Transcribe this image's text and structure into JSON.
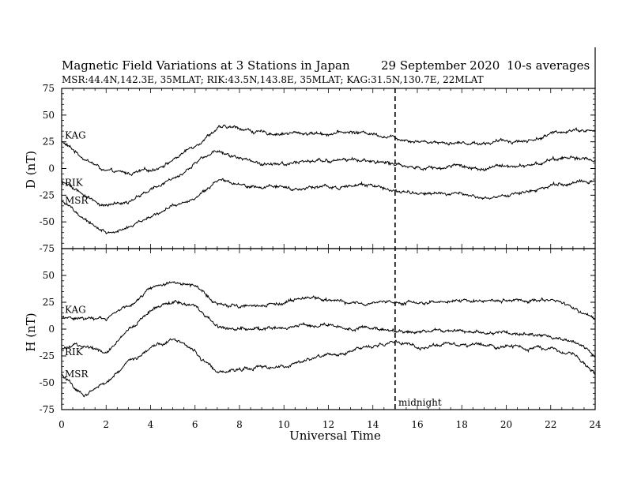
{
  "header": {
    "title": "Magnetic Field Variations at 3 Stations in Japan",
    "date": "29 September 2020",
    "averaging": "10-s averages",
    "stations_line": "MSR:44.4N,142.3E, 35MLAT;  RIK:43.5N,143.8E, 35MLAT;  KAG:31.5N,130.7E, 22MLAT"
  },
  "annotation": {
    "midnight_label": "midnight",
    "midnight_ut": 15
  },
  "chart_data": [
    {
      "type": "line",
      "panel": "D",
      "ylabel": "D (nT)",
      "xlabel": "Universal Time",
      "xlim": [
        0,
        24
      ],
      "ylim": [
        -75,
        75
      ],
      "xticks": [
        0,
        2,
        4,
        6,
        8,
        10,
        12,
        14,
        16,
        18,
        20,
        22,
        24
      ],
      "yticks": [
        75,
        50,
        25,
        0,
        -25,
        -50,
        -75
      ],
      "x": [
        0,
        1,
        2,
        3,
        4,
        5,
        6,
        7,
        8,
        9,
        10,
        11,
        12,
        13,
        14,
        15,
        16,
        17,
        18,
        19,
        20,
        21,
        22,
        23,
        24
      ],
      "series": [
        {
          "name": "KAG",
          "values": [
            25,
            10,
            -3,
            -5,
            -2,
            8,
            22,
            38,
            38,
            33,
            33,
            33,
            33,
            34,
            33,
            29,
            26,
            25,
            24,
            24,
            26,
            26,
            32,
            37,
            35
          ]
        },
        {
          "name": "RIK",
          "values": [
            -12,
            -26,
            -35,
            -30,
            -20,
            -10,
            5,
            17,
            10,
            5,
            5,
            6,
            7,
            8,
            8,
            3,
            2,
            0,
            1,
            -1,
            3,
            3,
            8,
            10,
            8
          ]
        },
        {
          "name": "MSR",
          "values": [
            -30,
            -48,
            -60,
            -55,
            -45,
            -35,
            -28,
            -10,
            -16,
            -18,
            -18,
            -18,
            -17,
            -16,
            -16,
            -20,
            -24,
            -24,
            -24,
            -28,
            -25,
            -22,
            -16,
            -14,
            -12
          ]
        }
      ]
    },
    {
      "type": "line",
      "panel": "H",
      "ylabel": "H (nT)",
      "xlabel": "Universal Time",
      "xlim": [
        0,
        24
      ],
      "ylim": [
        -75,
        75
      ],
      "xticks": [
        0,
        2,
        4,
        6,
        8,
        10,
        12,
        14,
        16,
        18,
        20,
        22,
        24
      ],
      "yticks": [
        75,
        50,
        25,
        0,
        -25,
        -50,
        -75
      ],
      "x": [
        0,
        1,
        2,
        3,
        4,
        5,
        6,
        7,
        8,
        9,
        10,
        11,
        12,
        13,
        14,
        15,
        16,
        17,
        18,
        19,
        20,
        21,
        22,
        23,
        24
      ],
      "series": [
        {
          "name": "KAG",
          "values": [
            12,
            10,
            10,
            22,
            38,
            45,
            40,
            25,
            22,
            22,
            25,
            30,
            26,
            24,
            24,
            26,
            25,
            25,
            26,
            26,
            27,
            28,
            27,
            20,
            10
          ]
        },
        {
          "name": "RIK",
          "values": [
            -20,
            -15,
            -22,
            0,
            18,
            25,
            22,
            3,
            0,
            0,
            2,
            5,
            3,
            0,
            2,
            -2,
            -2,
            -1,
            -3,
            -3,
            -3,
            -5,
            -8,
            -12,
            -24
          ]
        },
        {
          "name": "MSR",
          "values": [
            -42,
            -62,
            -50,
            -30,
            -18,
            -10,
            -20,
            -42,
            -38,
            -36,
            -36,
            -28,
            -22,
            -20,
            -15,
            -12,
            -16,
            -16,
            -15,
            -15,
            -16,
            -18,
            -18,
            -22,
            -42
          ]
        }
      ]
    }
  ]
}
